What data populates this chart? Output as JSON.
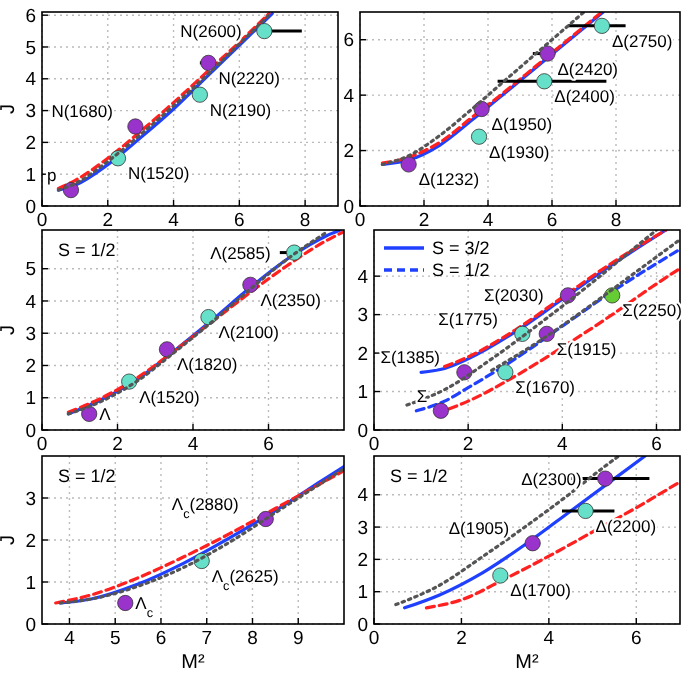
{
  "chart_data": [
    {
      "type": "line",
      "ylabel": "J",
      "xlim": [
        0,
        9
      ],
      "xticks": [
        0,
        2,
        4,
        6,
        8
      ],
      "ylim": [
        0,
        6.1
      ],
      "yticks": [
        0,
        1,
        2,
        3,
        4,
        5,
        6
      ],
      "grid": true,
      "series": [
        {
          "type": "line",
          "color": "#555555",
          "line_style": "dotted",
          "x": [
            0.5,
            1,
            2,
            3,
            4,
            5,
            6,
            6.95
          ],
          "values": [
            0.5,
            0.7,
            1.4,
            2.25,
            3.15,
            4.1,
            5.1,
            6.05
          ]
        },
        {
          "type": "line",
          "color": "#2040ff",
          "line_style": "solid",
          "x": [
            0.5,
            1,
            2,
            3,
            4,
            5,
            6,
            7
          ],
          "values": [
            0.5,
            0.65,
            1.3,
            2.15,
            3.05,
            4.05,
            5.05,
            6.05
          ]
        },
        {
          "type": "line",
          "color": "#ff2020",
          "line_style": "dashed",
          "x": [
            0.5,
            1,
            2,
            3,
            4,
            5,
            6,
            6.9
          ],
          "values": [
            0.55,
            0.8,
            1.5,
            2.35,
            3.25,
            4.2,
            5.15,
            6.05
          ]
        },
        {
          "type": "scatter",
          "color": "#9933cc",
          "marker": "circle",
          "x": [
            0.88,
            2.84,
            5.06
          ],
          "values": [
            0.5,
            2.5,
            4.5
          ],
          "xerrors": [
            null,
            null,
            [
              4.8,
              5.1
            ]
          ]
        },
        {
          "type": "scatter",
          "color": "#66e0c8",
          "marker": "circle",
          "x": [
            2.31,
            4.8,
            6.76
          ],
          "values": [
            1.5,
            3.5,
            5.5
          ],
          "xerrors": [
            null,
            [
              4.6,
              4.9
            ],
            [
              6.76,
              7.9
            ]
          ]
        }
      ],
      "annotations": [
        {
          "text": "p",
          "x": 0.88,
          "y": 0.5
        },
        {
          "text": "N(1520)",
          "x": 2.31,
          "y": 1.5
        },
        {
          "text": "N(1680)",
          "x": 2.84,
          "y": 2.5
        },
        {
          "text": "N(2190)",
          "x": 4.8,
          "y": 3.5
        },
        {
          "text": "N(2220)",
          "x": 5.06,
          "y": 4.5
        },
        {
          "text": "N(2600)",
          "x": 6.76,
          "y": 5.5
        }
      ]
    },
    {
      "type": "line",
      "xlim": [
        0,
        10
      ],
      "xticks": [
        0,
        2,
        4,
        6,
        8
      ],
      "ylim": [
        0,
        7
      ],
      "yticks": [
        0,
        2,
        4,
        6
      ],
      "grid": true,
      "series": [
        {
          "type": "line",
          "color": "#555555",
          "line_style": "dotted",
          "x": [
            0.7,
            1.5,
            2.5,
            3.5,
            4.5,
            5.5,
            6.5,
            7
          ],
          "values": [
            1.5,
            1.8,
            2.55,
            3.5,
            4.5,
            5.5,
            6.5,
            7
          ]
        },
        {
          "type": "line",
          "color": "#2040ff",
          "line_style": "solid",
          "x": [
            0.7,
            1.5,
            2.5,
            3.5,
            4.5,
            5.5,
            6.5,
            7.6
          ],
          "values": [
            1.5,
            1.65,
            2.2,
            3.1,
            4.05,
            5.0,
            5.95,
            7.0
          ]
        },
        {
          "type": "line",
          "color": "#ff2020",
          "line_style": "dashed",
          "x": [
            0.7,
            1.5,
            2.5,
            3.5,
            4.5,
            5.5,
            6.5,
            7.5
          ],
          "values": [
            1.55,
            1.75,
            2.3,
            3.2,
            4.1,
            5.05,
            6.0,
            6.95
          ]
        },
        {
          "type": "scatter",
          "color": "#9933cc",
          "marker": "circle",
          "x": [
            1.52,
            3.8,
            5.86
          ],
          "values": [
            1.5,
            3.5,
            5.5
          ],
          "xerrors": [
            null,
            null,
            [
              5.4,
              6.1
            ]
          ]
        },
        {
          "type": "scatter",
          "color": "#66e0c8",
          "marker": "circle",
          "x": [
            3.72,
            5.76,
            7.56
          ],
          "values": [
            2.5,
            4.5,
            6.5
          ],
          "xerrors": [
            null,
            [
              4.3,
              7.7
            ],
            [
              6.5,
              8.3
            ]
          ]
        }
      ],
      "annotations": [
        {
          "text": "Δ(1232)",
          "x": 1.52,
          "y": 1.5
        },
        {
          "text": "Δ(1930)",
          "x": 3.72,
          "y": 2.5
        },
        {
          "text": "Δ(1950)",
          "x": 3.8,
          "y": 3.5
        },
        {
          "text": "Δ(2400)",
          "x": 5.76,
          "y": 4.5
        },
        {
          "text": "Δ(2420)",
          "x": 5.86,
          "y": 5.5
        },
        {
          "text": "Δ(2750)",
          "x": 7.56,
          "y": 6.5
        }
      ]
    },
    {
      "type": "line",
      "ylabel": "J",
      "xlim": [
        0,
        8
      ],
      "xticks": [
        0,
        2,
        4,
        6
      ],
      "ylim": [
        0,
        6.2
      ],
      "yticks": [
        0,
        1,
        2,
        3,
        4,
        5
      ],
      "grid": true,
      "series": [
        {
          "type": "line",
          "color": "#555555",
          "line_style": "dotted",
          "x": [
            0.7,
            1.5,
            2.5,
            3.5,
            4.5,
            5.5,
            6.5,
            7.5
          ],
          "values": [
            0.5,
            0.85,
            1.5,
            2.4,
            3.35,
            4.35,
            5.3,
            6.1
          ]
        },
        {
          "type": "line",
          "color": "#2040ff",
          "line_style": "solid",
          "x": [
            0.7,
            1.5,
            2.5,
            3.5,
            4.5,
            5.5,
            6.5,
            7.5,
            7.9
          ],
          "values": [
            0.5,
            0.9,
            1.55,
            2.45,
            3.4,
            4.4,
            5.3,
            6.0,
            6.2
          ]
        },
        {
          "type": "line",
          "color": "#ff2020",
          "line_style": "dashed",
          "x": [
            0.7,
            1.5,
            2.5,
            3.5,
            4.5,
            5.5,
            6.5,
            7.5,
            8
          ],
          "values": [
            0.55,
            0.95,
            1.6,
            2.45,
            3.35,
            4.25,
            5.1,
            5.85,
            6.15
          ]
        },
        {
          "type": "scatter",
          "color": "#9933cc",
          "marker": "circle",
          "x": [
            1.25,
            3.31,
            5.52
          ],
          "values": [
            0.5,
            2.5,
            4.5
          ]
        },
        {
          "type": "scatter",
          "color": "#66e0c8",
          "marker": "circle",
          "x": [
            2.31,
            4.41,
            6.68
          ],
          "values": [
            1.5,
            3.5,
            5.5
          ],
          "xerrors": [
            null,
            null,
            [
              6.3,
              6.8
            ]
          ]
        }
      ],
      "annotations": [
        "S = 1/2",
        {
          "text": "Λ",
          "x": 1.25,
          "y": 0.5
        },
        {
          "text": "Λ(1520)",
          "x": 2.31,
          "y": 1.5
        },
        {
          "text": "Λ(1820)",
          "x": 3.31,
          "y": 2.5
        },
        {
          "text": "Λ(2100)",
          "x": 4.41,
          "y": 3.5
        },
        {
          "text": "Λ(2350)",
          "x": 5.52,
          "y": 4.5
        },
        {
          "text": "Λ(2585)",
          "x": 6.68,
          "y": 5.5
        }
      ]
    },
    {
      "type": "line",
      "xlim": [
        0,
        6.5
      ],
      "xticks": [
        0,
        2,
        4,
        6
      ],
      "ylim": [
        0,
        5.2
      ],
      "yticks": [
        0,
        1,
        2,
        3,
        4
      ],
      "grid": true,
      "legend": "top left",
      "series": [
        {
          "type": "line",
          "color": "#555555",
          "line_style": "dotted",
          "x": [
            0.7,
            1.5,
            2.5,
            3.5,
            4.5,
            5.5,
            6
          ],
          "values": [
            0.65,
            1.05,
            1.85,
            2.75,
            3.7,
            4.7,
            5.2
          ]
        },
        {
          "type": "line",
          "color": "#555555",
          "line_style": "dotted",
          "x": [
            2.5,
            3.5,
            4.5,
            5.5,
            6.5
          ],
          "values": [
            1.55,
            2.3,
            3.15,
            4.05,
            4.95
          ]
        },
        {
          "type": "line",
          "name": "S = 3/2",
          "color": "#2040ff",
          "line_style": "solid",
          "x": [
            1.0,
            1.5,
            2,
            3,
            4,
            5,
            6.2
          ],
          "values": [
            1.5,
            1.6,
            1.85,
            2.55,
            3.4,
            4.25,
            5.2
          ]
        },
        {
          "type": "line",
          "name": "S = 1/2",
          "color": "#2040ff",
          "line_style": "dashed",
          "x": [
            0.9,
            1.5,
            2,
            3,
            4,
            5,
            6.5
          ],
          "values": [
            0.5,
            0.75,
            1.1,
            1.85,
            2.7,
            3.55,
            4.7
          ]
        },
        {
          "type": "line",
          "color": "#ff2020",
          "line_style": "dashed",
          "x": [
            1.6,
            2,
            3,
            4,
            5,
            6,
            6.5
          ],
          "values": [
            0.55,
            0.75,
            1.4,
            2.15,
            2.95,
            3.8,
            4.2
          ]
        },
        {
          "type": "line",
          "color": "#ff2020",
          "line_style": "dashed",
          "x": [
            1.5,
            2,
            3,
            4,
            5,
            6.2
          ],
          "values": [
            1.65,
            1.9,
            2.6,
            3.45,
            4.3,
            5.2
          ]
        },
        {
          "type": "scatter",
          "color": "#9933cc",
          "marker": "circle",
          "x": [
            1.42,
            1.92,
            3.67,
            4.12
          ],
          "values": [
            0.5,
            1.5,
            2.5,
            3.5
          ]
        },
        {
          "type": "scatter",
          "color": "#66e0c8",
          "marker": "circle",
          "x": [
            2.79,
            3.15
          ],
          "values": [
            1.5,
            2.5
          ]
        },
        {
          "type": "scatter",
          "color": "#66cc33",
          "marker": "circle",
          "x": [
            5.06
          ],
          "values": [
            3.5
          ]
        }
      ],
      "annotations": [
        {
          "text": "Σ",
          "x": 1.42,
          "y": 0.5
        },
        {
          "text": "Σ(1385)",
          "x": 1.92,
          "y": 1.5
        },
        {
          "text": "Σ(1670)",
          "x": 2.79,
          "y": 1.5
        },
        {
          "text": "Σ(1775)",
          "x": 3.15,
          "y": 2.5
        },
        {
          "text": "Σ(1915)",
          "x": 3.67,
          "y": 2.5
        },
        {
          "text": "Σ(2030)",
          "x": 4.12,
          "y": 3.5
        },
        {
          "text": "Σ(2250)",
          "x": 5.06,
          "y": 3.5
        }
      ]
    },
    {
      "type": "line",
      "ylabel": "J",
      "xlabel": "M²",
      "xlim": [
        3.4,
        10
      ],
      "xticks": [
        4,
        5,
        6,
        7,
        8,
        9
      ],
      "ylim": [
        0,
        4
      ],
      "yticks": [
        0,
        1,
        2,
        3
      ],
      "grid": true,
      "series": [
        {
          "type": "line",
          "color": "#555555",
          "line_style": "dotted",
          "x": [
            3.8,
            4.5,
            5.5,
            6.5,
            7.5,
            8.5,
            9.5,
            10
          ],
          "values": [
            0.5,
            0.6,
            0.9,
            1.35,
            1.95,
            2.65,
            3.35,
            3.7
          ]
        },
        {
          "type": "line",
          "color": "#2040ff",
          "line_style": "solid",
          "x": [
            3.8,
            4.5,
            5.5,
            6.5,
            7.5,
            8.5,
            9.5,
            10
          ],
          "values": [
            0.5,
            0.6,
            0.95,
            1.45,
            2.05,
            2.7,
            3.4,
            3.75
          ]
        },
        {
          "type": "line",
          "color": "#ff2020",
          "line_style": "dashed",
          "x": [
            3.7,
            4.5,
            5.5,
            6.5,
            7.5,
            8.5,
            9.5,
            10
          ],
          "values": [
            0.5,
            0.7,
            1.1,
            1.6,
            2.15,
            2.75,
            3.35,
            3.65
          ]
        },
        {
          "type": "scatter",
          "color": "#9933cc",
          "marker": "circle",
          "x": [
            5.22,
            8.29
          ],
          "values": [
            0.5,
            2.5
          ]
        },
        {
          "type": "scatter",
          "color": "#66e0c8",
          "marker": "circle",
          "x": [
            6.89
          ],
          "values": [
            1.5
          ]
        }
      ],
      "annotations": [
        "S = 1/2",
        {
          "text": "Λ$_{c}$",
          "x": 5.22,
          "y": 0.5
        },
        {
          "text": "Λ$_{c}$(2625)",
          "x": 6.89,
          "y": 1.5
        },
        {
          "text": "Λ$_{c}$(2880)",
          "x": 8.29,
          "y": 2.5
        }
      ]
    },
    {
      "type": "line",
      "xlabel": "M²",
      "xlim": [
        0,
        7
      ],
      "xticks": [
        0,
        2,
        4,
        6
      ],
      "ylim": [
        0,
        5.2
      ],
      "yticks": [
        0,
        1,
        2,
        3,
        4
      ],
      "grid": true,
      "series": [
        {
          "type": "line",
          "color": "#555555",
          "line_style": "dotted",
          "x": [
            0.5,
            1.5,
            2.5,
            3.5,
            4.5,
            5.3,
            5.6
          ],
          "values": [
            0.6,
            1.2,
            2.1,
            3.05,
            4.05,
            4.9,
            5.2
          ]
        },
        {
          "type": "line",
          "color": "#2040ff",
          "line_style": "solid",
          "x": [
            0.7,
            1.5,
            2.5,
            3.5,
            4.5,
            5.5,
            6.2
          ],
          "values": [
            0.5,
            0.9,
            1.6,
            2.5,
            3.5,
            4.5,
            5.2
          ]
        },
        {
          "type": "line",
          "color": "#ff2020",
          "line_style": "dashed",
          "x": [
            1.2,
            2,
            3,
            4,
            5,
            6,
            7
          ],
          "values": [
            0.5,
            0.75,
            1.4,
            2.1,
            2.85,
            3.6,
            4.4
          ]
        },
        {
          "type": "scatter",
          "color": "#9933cc",
          "marker": "circle",
          "x": [
            3.63,
            5.29
          ],
          "values": [
            2.5,
            4.5
          ],
          "xerrors": [
            null,
            [
              4.5,
              6.3
            ]
          ]
        },
        {
          "type": "scatter",
          "color": "#66e0c8",
          "marker": "circle",
          "x": [
            2.89,
            4.84
          ],
          "values": [
            1.5,
            3.5
          ],
          "xerrors": [
            null,
            [
              4.3,
              5.5
            ]
          ]
        }
      ],
      "annotations": [
        "S = 1/2",
        {
          "text": "Δ(1700)",
          "x": 2.89,
          "y": 1.5
        },
        {
          "text": "Δ(1905)",
          "x": 3.63,
          "y": 2.5
        },
        {
          "text": "Δ(2200)",
          "x": 4.84,
          "y": 3.5
        },
        {
          "text": "Δ(2300)",
          "x": 5.29,
          "y": 4.5
        }
      ]
    }
  ]
}
